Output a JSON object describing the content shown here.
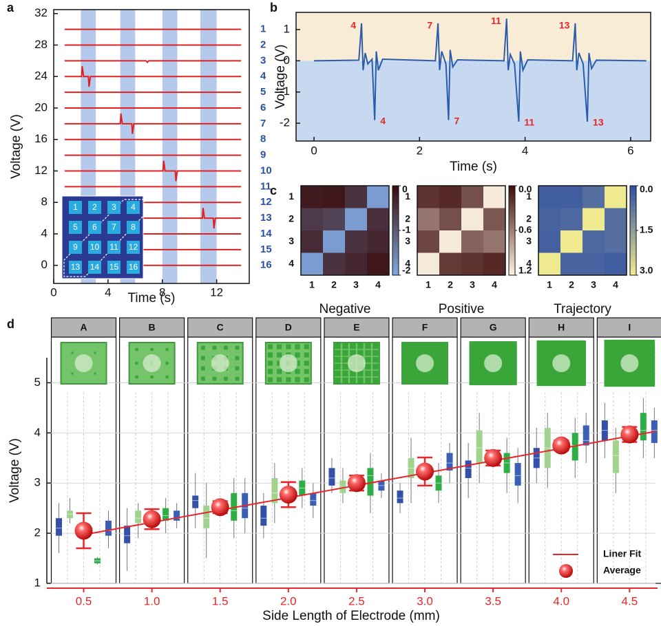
{
  "chart_data": [
    {
      "type": "multiline",
      "panel_label": "a",
      "xlabel": "Time (s)",
      "ylabel": "Voltage (V)",
      "xlim": [
        0,
        14.4
      ],
      "ylim": [
        -2.3,
        32.5
      ],
      "xticks": [
        0,
        4,
        8,
        12
      ],
      "yticks": [
        0,
        4,
        8,
        12,
        16,
        20,
        24,
        28,
        32
      ],
      "shaded_x_ranges": [
        [
          2.0,
          3.1
        ],
        [
          4.9,
          6.0
        ],
        [
          8.0,
          9.1
        ],
        [
          10.8,
          12.0
        ]
      ],
      "inset_labels": [
        "1",
        "2",
        "3",
        "4",
        "5",
        "6",
        "7",
        "8",
        "9",
        "10",
        "11",
        "12",
        "13",
        "14",
        "15",
        "16"
      ],
      "series": [
        {
          "name": "1",
          "color": "#e02020",
          "x": [
            0.8,
            13.8
          ],
          "values": [
            30,
            30
          ]
        },
        {
          "name": "2",
          "color": "#e02020",
          "x": [
            0.8,
            13.8
          ],
          "values": [
            28,
            28
          ]
        },
        {
          "name": "3",
          "color": "#e02020",
          "x": [
            0.8,
            6.8,
            6.9,
            7.0,
            13.8
          ],
          "values": [
            26,
            26,
            25.8,
            26,
            26
          ]
        },
        {
          "name": "4",
          "color": "#e02020",
          "x": [
            0.8,
            2.05,
            2.1,
            2.2,
            2.55,
            2.6,
            2.7,
            13.8
          ],
          "values": [
            24,
            24,
            25.3,
            24,
            24,
            22.7,
            24,
            24
          ]
        },
        {
          "name": "5",
          "color": "#e02020",
          "x": [
            0.8,
            13.8
          ],
          "values": [
            22,
            22
          ]
        },
        {
          "name": "6",
          "color": "#e02020",
          "x": [
            0.8,
            13.8
          ],
          "values": [
            20,
            20
          ]
        },
        {
          "name": "7",
          "color": "#e02020",
          "x": [
            0.8,
            4.9,
            4.95,
            5.05,
            5.75,
            5.8,
            5.9,
            13.8
          ],
          "values": [
            18,
            18,
            19.3,
            18,
            18,
            16.7,
            18,
            18
          ]
        },
        {
          "name": "8",
          "color": "#e02020",
          "x": [
            0.8,
            13.8
          ],
          "values": [
            16,
            16
          ]
        },
        {
          "name": "9",
          "color": "#e02020",
          "x": [
            0.8,
            13.8
          ],
          "values": [
            14,
            14
          ]
        },
        {
          "name": "10",
          "color": "#e02020",
          "x": [
            0.8,
            8.05,
            8.1,
            8.2,
            8.95,
            9.0,
            9.1,
            13.8
          ],
          "values": [
            12,
            12,
            13.3,
            12,
            12,
            10.7,
            12,
            12
          ]
        },
        {
          "name": "11",
          "color": "#e02020",
          "x": [
            0.8,
            13.8
          ],
          "values": [
            10,
            10
          ]
        },
        {
          "name": "12",
          "color": "#e02020",
          "x": [
            0.8,
            13.8
          ],
          "values": [
            8,
            8
          ]
        },
        {
          "name": "13",
          "color": "#e02020",
          "x": [
            0.8,
            10.95,
            11.0,
            11.1,
            11.75,
            11.8,
            11.9,
            13.8
          ],
          "values": [
            6,
            6,
            7.3,
            6,
            6,
            4.7,
            6,
            6
          ]
        },
        {
          "name": "14",
          "color": "#e02020",
          "x": [
            0.8,
            13.8
          ],
          "values": [
            4,
            4
          ]
        },
        {
          "name": "15",
          "color": "#e02020",
          "x": [
            0.8,
            13.8
          ],
          "values": [
            2,
            2
          ]
        },
        {
          "name": "16",
          "color": "#e02020",
          "x": [
            0.8,
            13.8
          ],
          "values": [
            0,
            0
          ]
        }
      ]
    },
    {
      "type": "line",
      "panel_label": "b",
      "xlabel": "Time (s)",
      "ylabel": "Voltage (V)",
      "xlim": [
        -0.34,
        6.38
      ],
      "ylim": [
        -2.57,
        1.55
      ],
      "xticks": [
        0,
        2,
        4,
        6
      ],
      "yticks": [
        -2,
        -1,
        0,
        1
      ],
      "color": "#2a5cab",
      "positive_labels": [
        "4",
        "7",
        "11",
        "13"
      ],
      "negative_labels": [
        "4",
        "7",
        "11",
        "13"
      ],
      "x": [
        0,
        0.85,
        0.9,
        0.93,
        0.97,
        1.02,
        1.1,
        1.15,
        1.18,
        1.22,
        1.3,
        2.3,
        2.35,
        2.38,
        2.42,
        2.5,
        2.55,
        2.58,
        2.63,
        2.72,
        3.6,
        3.65,
        3.68,
        3.72,
        3.8,
        3.88,
        3.91,
        3.96,
        4.05,
        4.9,
        4.95,
        4.98,
        5.02,
        5.1,
        5.18,
        5.21,
        5.26,
        5.35,
        6.3
      ],
      "values": [
        0,
        0.02,
        1.2,
        -0.3,
        0.25,
        -0.1,
        0.05,
        -1.9,
        0.3,
        -0.3,
        0.05,
        0,
        1.2,
        -0.3,
        0.3,
        -0.1,
        -1.9,
        0.35,
        -0.2,
        0.03,
        0,
        1.35,
        -0.3,
        0.2,
        -0.1,
        -1.95,
        0.3,
        -0.3,
        0.03,
        0,
        1.2,
        -0.3,
        0.25,
        -0.1,
        -1.95,
        0.25,
        -0.25,
        0.02,
        0
      ]
    },
    {
      "type": "heatmap",
      "panel_label": "c",
      "xlabel": "Negative",
      "rows": [
        "1",
        "2",
        "3",
        "4"
      ],
      "columns": [
        "1",
        "2",
        "3",
        "4"
      ],
      "clim": [
        0,
        -2
      ],
      "colors": [
        "#3a0b0b",
        "#7fa8e0"
      ],
      "cticks": [
        0,
        -1,
        -2
      ],
      "values": [
        [
          -0.2,
          -0.15,
          -0.5,
          -1.85
        ],
        [
          -0.6,
          -0.7,
          -1.85,
          -0.45
        ],
        [
          -0.4,
          -1.85,
          -0.5,
          -0.35
        ],
        [
          -1.85,
          -0.5,
          -0.35,
          -0.15
        ]
      ]
    },
    {
      "type": "heatmap",
      "xlabel": "Positive",
      "rows": [
        "1",
        "2",
        "3",
        "4"
      ],
      "columns": [
        "1",
        "2",
        "3",
        "4"
      ],
      "clim": [
        0,
        1.2
      ],
      "colors": [
        "#3d0b0b",
        "#fdf3e3"
      ],
      "cticks": [
        {
          "value": 0,
          "label": "0.0"
        },
        0.6,
        1.2
      ],
      "values": [
        [
          0.2,
          0.15,
          0.35,
          1.15
        ],
        [
          0.55,
          0.35,
          1.15,
          0.4
        ],
        [
          0.3,
          1.15,
          0.45,
          0.55
        ],
        [
          1.15,
          0.25,
          0.2,
          0.15
        ]
      ]
    },
    {
      "type": "heatmap",
      "xlabel": "Trajectory",
      "rows": [
        "1",
        "2",
        "3",
        "4"
      ],
      "columns": [
        "1",
        "2",
        "3",
        "4"
      ],
      "clim": [
        0,
        3
      ],
      "colors": [
        "#2d4ea3",
        "#f2ec90"
      ],
      "cticks": [
        {
          "value": 0,
          "label": "0.0"
        },
        1.5,
        {
          "value": 3,
          "label": "3.0"
        }
      ],
      "values": [
        [
          0.3,
          0.3,
          0.6,
          2.95
        ],
        [
          0.4,
          0.5,
          2.95,
          0.6
        ],
        [
          0.35,
          2.95,
          0.5,
          0.6
        ],
        [
          2.95,
          0.4,
          0.4,
          0.3
        ]
      ]
    },
    {
      "type": "boxgroups",
      "panel_label": "d",
      "xlabel": "Side Length of Electrode (mm)",
      "ylabel": "Voltage (V)",
      "xlim": [
        0.23,
        4.69
      ],
      "ylim": [
        1,
        5.5
      ],
      "yticks": [
        1,
        2,
        3,
        4,
        5
      ],
      "grid": true,
      "legend": "lower right",
      "xticks": [
        0.5,
        {
          "value": 1,
          "label": "1.0"
        },
        1.5,
        {
          "value": 2,
          "label": "2.0"
        },
        2.5,
        {
          "value": 3,
          "label": "3.0"
        },
        3.5,
        {
          "value": 4,
          "label": "4.0"
        },
        4.5
      ],
      "groups": [
        "A",
        "B",
        "C",
        "D",
        "E",
        "F",
        "G",
        "H",
        "I"
      ],
      "x": [
        0.5,
        1,
        1.5,
        2,
        2.5,
        3,
        3.5,
        4,
        4.5
      ],
      "boxes": [
        {
          "color": "#3550a8",
          "median": [
            2.1,
            1.95,
            2.65,
            2.3,
            3.1,
            2.7,
            3.3,
            3.5,
            4.05
          ],
          "q1": [
            1.95,
            1.8,
            2.5,
            2.15,
            2.95,
            2.6,
            3.1,
            3.3,
            3.85
          ],
          "q3": [
            2.3,
            2.15,
            2.75,
            2.55,
            3.3,
            2.85,
            3.45,
            3.7,
            4.25
          ],
          "whislo": [
            1.6,
            1.25,
            2.1,
            1.9,
            2.8,
            2.4,
            2.7,
            3.0,
            3.5
          ],
          "whishi": [
            2.6,
            2.5,
            3.2,
            2.8,
            3.5,
            3.0,
            3.8,
            4.1,
            4.6
          ]
        },
        {
          "color": "#a2d38e",
          "median": [
            2.38,
            2.3,
            2.3,
            2.8,
            2.9,
            3.3,
            3.7,
            3.7,
            3.55
          ],
          "q1": [
            2.3,
            2.2,
            2.1,
            2.6,
            2.8,
            3.1,
            3.4,
            3.3,
            3.2
          ],
          "q3": [
            2.45,
            2.45,
            2.55,
            3.1,
            3.05,
            3.5,
            4.05,
            4.1,
            3.85
          ],
          "whislo": [
            2.2,
            1.9,
            1.5,
            2.2,
            2.6,
            2.6,
            3.0,
            2.9,
            2.8
          ],
          "whishi": [
            2.7,
            2.6,
            3.0,
            3.4,
            3.3,
            3.9,
            4.4,
            4.4,
            4.1
          ]
        },
        {
          "color": "#2fae46",
          "median": [
            1.45,
            2.35,
            2.45,
            2.9,
            3.15,
            3.0,
            3.4,
            3.75,
            4.05
          ],
          "q1": [
            1.4,
            2.25,
            2.25,
            2.75,
            2.75,
            2.85,
            3.2,
            3.45,
            3.85
          ],
          "q3": [
            1.5,
            2.5,
            2.8,
            3.05,
            3.3,
            3.15,
            3.6,
            4.0,
            4.4
          ],
          "whislo": [
            1.38,
            2.0,
            1.9,
            2.5,
            2.4,
            2.6,
            2.8,
            3.1,
            3.5
          ],
          "whishi": [
            1.52,
            2.7,
            3.1,
            3.3,
            3.6,
            3.4,
            3.9,
            4.3,
            4.7
          ]
        },
        {
          "color": "#3a5fb5",
          "median": [
            2.05,
            2.3,
            2.5,
            2.65,
            2.95,
            3.4,
            3.15,
            3.85,
            4.05
          ],
          "q1": [
            1.95,
            2.25,
            2.3,
            2.55,
            2.85,
            3.25,
            2.95,
            3.75,
            3.8
          ],
          "q3": [
            2.25,
            2.45,
            2.8,
            2.8,
            3.05,
            3.6,
            3.4,
            4.15,
            4.25
          ],
          "whislo": [
            1.7,
            2.1,
            2.0,
            2.3,
            2.7,
            3.0,
            2.6,
            3.4,
            3.5
          ],
          "whishi": [
            2.45,
            2.6,
            3.1,
            3.0,
            3.2,
            3.8,
            3.7,
            4.4,
            4.5
          ]
        }
      ],
      "average": {
        "name": "Average",
        "color": "#e8262b",
        "values": [
          2.05,
          2.28,
          2.52,
          2.77,
          3.0,
          3.23,
          3.5,
          3.75,
          3.97
        ],
        "errors": [
          0.35,
          0.2,
          0.12,
          0.25,
          0.15,
          0.28,
          0.15,
          0.1,
          0.15
        ]
      },
      "fit": {
        "name": "Liner Fit",
        "color": "#e8262b",
        "x": [
          0.5,
          4.69
        ],
        "values": [
          1.97,
          4.03
        ]
      }
    }
  ]
}
